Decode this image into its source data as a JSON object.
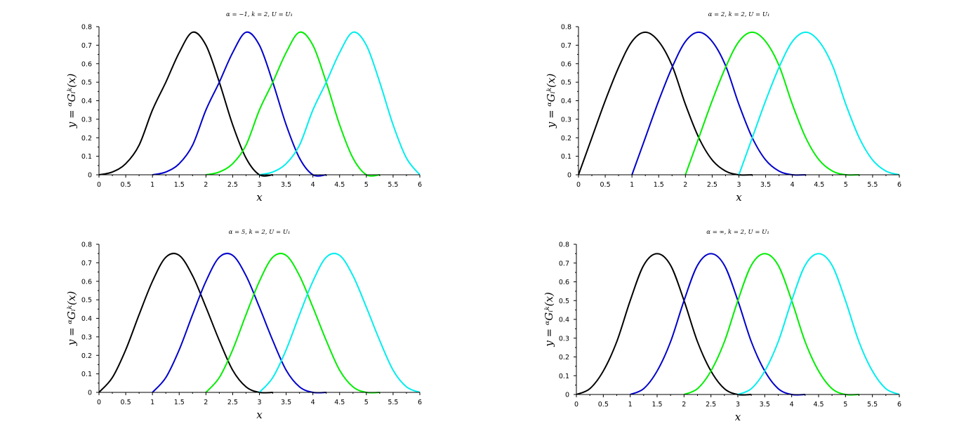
{
  "chart_data": [
    {
      "type": "line",
      "title": "α = −1, k = 2, U = U₁",
      "xlabel": "x",
      "ylabel": "y = ᵅGᵢᵏ(x)",
      "xlim": [
        0,
        6
      ],
      "ylim": [
        0,
        0.8
      ],
      "grid": false,
      "xticks": [
        "0",
        "0.5",
        "1",
        "1.5",
        "2",
        "2.5",
        "3",
        "3.5",
        "4",
        "4.5",
        "5",
        "5.5",
        "6"
      ],
      "yticks": [
        "0",
        "0.1",
        "0.2",
        "0.3",
        "0.4",
        "0.5",
        "0.6",
        "0.7",
        "0.8"
      ],
      "series": [
        {
          "color": "#000000",
          "x": [
            0,
            0.25,
            0.5,
            0.75,
            1,
            1.25,
            1.5,
            1.75,
            2,
            2.25,
            2.5,
            2.75,
            3,
            3.25
          ],
          "y": [
            0,
            0.015,
            0.06,
            0.16,
            0.35,
            0.5,
            0.66,
            0.77,
            0.7,
            0.5,
            0.27,
            0.09,
            0,
            0
          ]
        },
        {
          "color": "#0000cc",
          "x": [
            1,
            1.25,
            1.5,
            1.75,
            2,
            2.25,
            2.5,
            2.75,
            3,
            3.25,
            3.5,
            3.75,
            4,
            4.25
          ],
          "y": [
            0,
            0.015,
            0.06,
            0.16,
            0.35,
            0.5,
            0.66,
            0.77,
            0.7,
            0.5,
            0.27,
            0.09,
            0,
            0
          ]
        },
        {
          "color": "#00ee00",
          "x": [
            2,
            2.25,
            2.5,
            2.75,
            3,
            3.25,
            3.5,
            3.75,
            4,
            4.25,
            4.5,
            4.75,
            5,
            5.25
          ],
          "y": [
            0,
            0.015,
            0.06,
            0.16,
            0.35,
            0.5,
            0.66,
            0.77,
            0.7,
            0.5,
            0.27,
            0.09,
            0,
            0
          ]
        },
        {
          "color": "#00eeee",
          "x": [
            3,
            3.25,
            3.5,
            3.75,
            4,
            4.25,
            4.5,
            4.75,
            5,
            5.25,
            5.5,
            5.75,
            6
          ],
          "y": [
            0,
            0.015,
            0.06,
            0.16,
            0.35,
            0.5,
            0.66,
            0.77,
            0.7,
            0.5,
            0.27,
            0.09,
            0
          ]
        }
      ]
    },
    {
      "type": "line",
      "title": "α = 2, k = 2, U = U₁",
      "xlabel": "x",
      "ylabel": "y = ᵅGᵢᵏ(x)",
      "xlim": [
        0,
        6
      ],
      "ylim": [
        0,
        0.8
      ],
      "grid": false,
      "xticks": [
        "0",
        "0.5",
        "1",
        "1.5",
        "2",
        "2.5",
        "3",
        "3.5",
        "4",
        "4.5",
        "5",
        "5.5",
        "6"
      ],
      "yticks": [
        "0",
        "0.1",
        "0.2",
        "0.3",
        "0.4",
        "0.5",
        "0.6",
        "0.7",
        "0.8"
      ],
      "series": [
        {
          "color": "#000000",
          "x": [
            0,
            0.25,
            0.5,
            0.75,
            1,
            1.25,
            1.5,
            1.75,
            2,
            2.25,
            2.5,
            2.75,
            3,
            3.25
          ],
          "y": [
            0,
            0.2,
            0.4,
            0.58,
            0.72,
            0.77,
            0.72,
            0.59,
            0.38,
            0.2,
            0.08,
            0.02,
            0,
            0
          ]
        },
        {
          "color": "#0000cc",
          "x": [
            1,
            1.25,
            1.5,
            1.75,
            2,
            2.25,
            2.5,
            2.75,
            3,
            3.25,
            3.5,
            3.75,
            4,
            4.25
          ],
          "y": [
            0,
            0.2,
            0.4,
            0.58,
            0.72,
            0.77,
            0.72,
            0.59,
            0.38,
            0.2,
            0.08,
            0.02,
            0,
            0
          ]
        },
        {
          "color": "#00ee00",
          "x": [
            2,
            2.25,
            2.5,
            2.75,
            3,
            3.25,
            3.5,
            3.75,
            4,
            4.25,
            4.5,
            4.75,
            5,
            5.25
          ],
          "y": [
            0,
            0.2,
            0.4,
            0.58,
            0.72,
            0.77,
            0.72,
            0.59,
            0.38,
            0.2,
            0.08,
            0.02,
            0,
            0
          ]
        },
        {
          "color": "#00eeee",
          "x": [
            3,
            3.25,
            3.5,
            3.75,
            4,
            4.25,
            4.5,
            4.75,
            5,
            5.25,
            5.5,
            5.75,
            6
          ],
          "y": [
            0,
            0.2,
            0.4,
            0.58,
            0.72,
            0.77,
            0.72,
            0.59,
            0.38,
            0.2,
            0.08,
            0.02,
            0
          ]
        }
      ]
    },
    {
      "type": "line",
      "title": "α = 5, k = 2, U = U₁",
      "xlabel": "x",
      "ylabel": "y = ᵅGᵢᵏ(x)",
      "xlim": [
        0,
        6
      ],
      "ylim": [
        0,
        0.8
      ],
      "grid": false,
      "xticks": [
        "0",
        "0.5",
        "1",
        "1.5",
        "2",
        "2.5",
        "3",
        "3.5",
        "4",
        "4.5",
        "5",
        "5.5",
        "6"
      ],
      "yticks": [
        "0",
        "0.1",
        "0.2",
        "0.3",
        "0.4",
        "0.5",
        "0.6",
        "0.7",
        "0.8"
      ],
      "series": [
        {
          "color": "#000000",
          "x": [
            0,
            0.25,
            0.5,
            0.75,
            1,
            1.25,
            1.5,
            1.75,
            2,
            2.25,
            2.5,
            2.75,
            3,
            3.25
          ],
          "y": [
            0,
            0.08,
            0.23,
            0.42,
            0.6,
            0.73,
            0.74,
            0.63,
            0.46,
            0.28,
            0.12,
            0.03,
            0,
            0
          ]
        },
        {
          "color": "#0000cc",
          "x": [
            1,
            1.25,
            1.5,
            1.75,
            2,
            2.25,
            2.5,
            2.75,
            3,
            3.25,
            3.5,
            3.75,
            4,
            4.25
          ],
          "y": [
            0,
            0.08,
            0.23,
            0.42,
            0.6,
            0.73,
            0.74,
            0.63,
            0.46,
            0.28,
            0.12,
            0.03,
            0,
            0
          ]
        },
        {
          "color": "#00ee00",
          "x": [
            2,
            2.25,
            2.5,
            2.75,
            3,
            3.25,
            3.5,
            3.75,
            4,
            4.25,
            4.5,
            4.75,
            5,
            5.25
          ],
          "y": [
            0,
            0.08,
            0.23,
            0.42,
            0.6,
            0.73,
            0.74,
            0.63,
            0.46,
            0.28,
            0.12,
            0.03,
            0,
            0
          ]
        },
        {
          "color": "#00eeee",
          "x": [
            3,
            3.25,
            3.5,
            3.75,
            4,
            4.25,
            4.5,
            4.75,
            5,
            5.25,
            5.5,
            5.75,
            6
          ],
          "y": [
            0,
            0.08,
            0.23,
            0.42,
            0.6,
            0.73,
            0.74,
            0.63,
            0.46,
            0.28,
            0.12,
            0.03,
            0
          ]
        }
      ]
    },
    {
      "type": "line",
      "title": "α = ∞, k = 2, U = U₁",
      "xlabel": "x",
      "ylabel": "y = ᵅGᵢᵏ(x)",
      "xlim": [
        0,
        6
      ],
      "ylim": [
        0,
        0.8
      ],
      "grid": false,
      "xticks": [
        "0",
        "0.5",
        "1",
        "1.5",
        "2",
        "2.5",
        "3",
        "3.5",
        "4",
        "4.5",
        "5",
        "5.5",
        "6"
      ],
      "yticks": [
        "0",
        "0.1",
        "0.2",
        "0.3",
        "0.4",
        "0.5",
        "0.6",
        "0.7",
        "0.8"
      ],
      "series": [
        {
          "color": "#000000",
          "x": [
            0,
            0.25,
            0.5,
            0.75,
            1,
            1.25,
            1.5,
            1.75,
            2,
            2.25,
            2.5,
            2.75,
            3,
            3.25
          ],
          "y": [
            0,
            0.031,
            0.125,
            0.281,
            0.5,
            0.688,
            0.75,
            0.688,
            0.5,
            0.281,
            0.125,
            0.031,
            0,
            0
          ]
        },
        {
          "color": "#0000cc",
          "x": [
            1,
            1.25,
            1.5,
            1.75,
            2,
            2.25,
            2.5,
            2.75,
            3,
            3.25,
            3.5,
            3.75,
            4,
            4.25
          ],
          "y": [
            0,
            0.031,
            0.125,
            0.281,
            0.5,
            0.688,
            0.75,
            0.688,
            0.5,
            0.281,
            0.125,
            0.031,
            0,
            0
          ]
        },
        {
          "color": "#00ee00",
          "x": [
            2,
            2.25,
            2.5,
            2.75,
            3,
            3.25,
            3.5,
            3.75,
            4,
            4.25,
            4.5,
            4.75,
            5,
            5.25
          ],
          "y": [
            0,
            0.031,
            0.125,
            0.281,
            0.5,
            0.688,
            0.75,
            0.688,
            0.5,
            0.281,
            0.125,
            0.031,
            0,
            0
          ]
        },
        {
          "color": "#00eeee",
          "x": [
            3,
            3.25,
            3.5,
            3.75,
            4,
            4.25,
            4.5,
            4.75,
            5,
            5.25,
            5.5,
            5.75,
            6
          ],
          "y": [
            0,
            0.031,
            0.125,
            0.281,
            0.5,
            0.688,
            0.75,
            0.688,
            0.5,
            0.281,
            0.125,
            0.031,
            0
          ]
        }
      ]
    }
  ]
}
